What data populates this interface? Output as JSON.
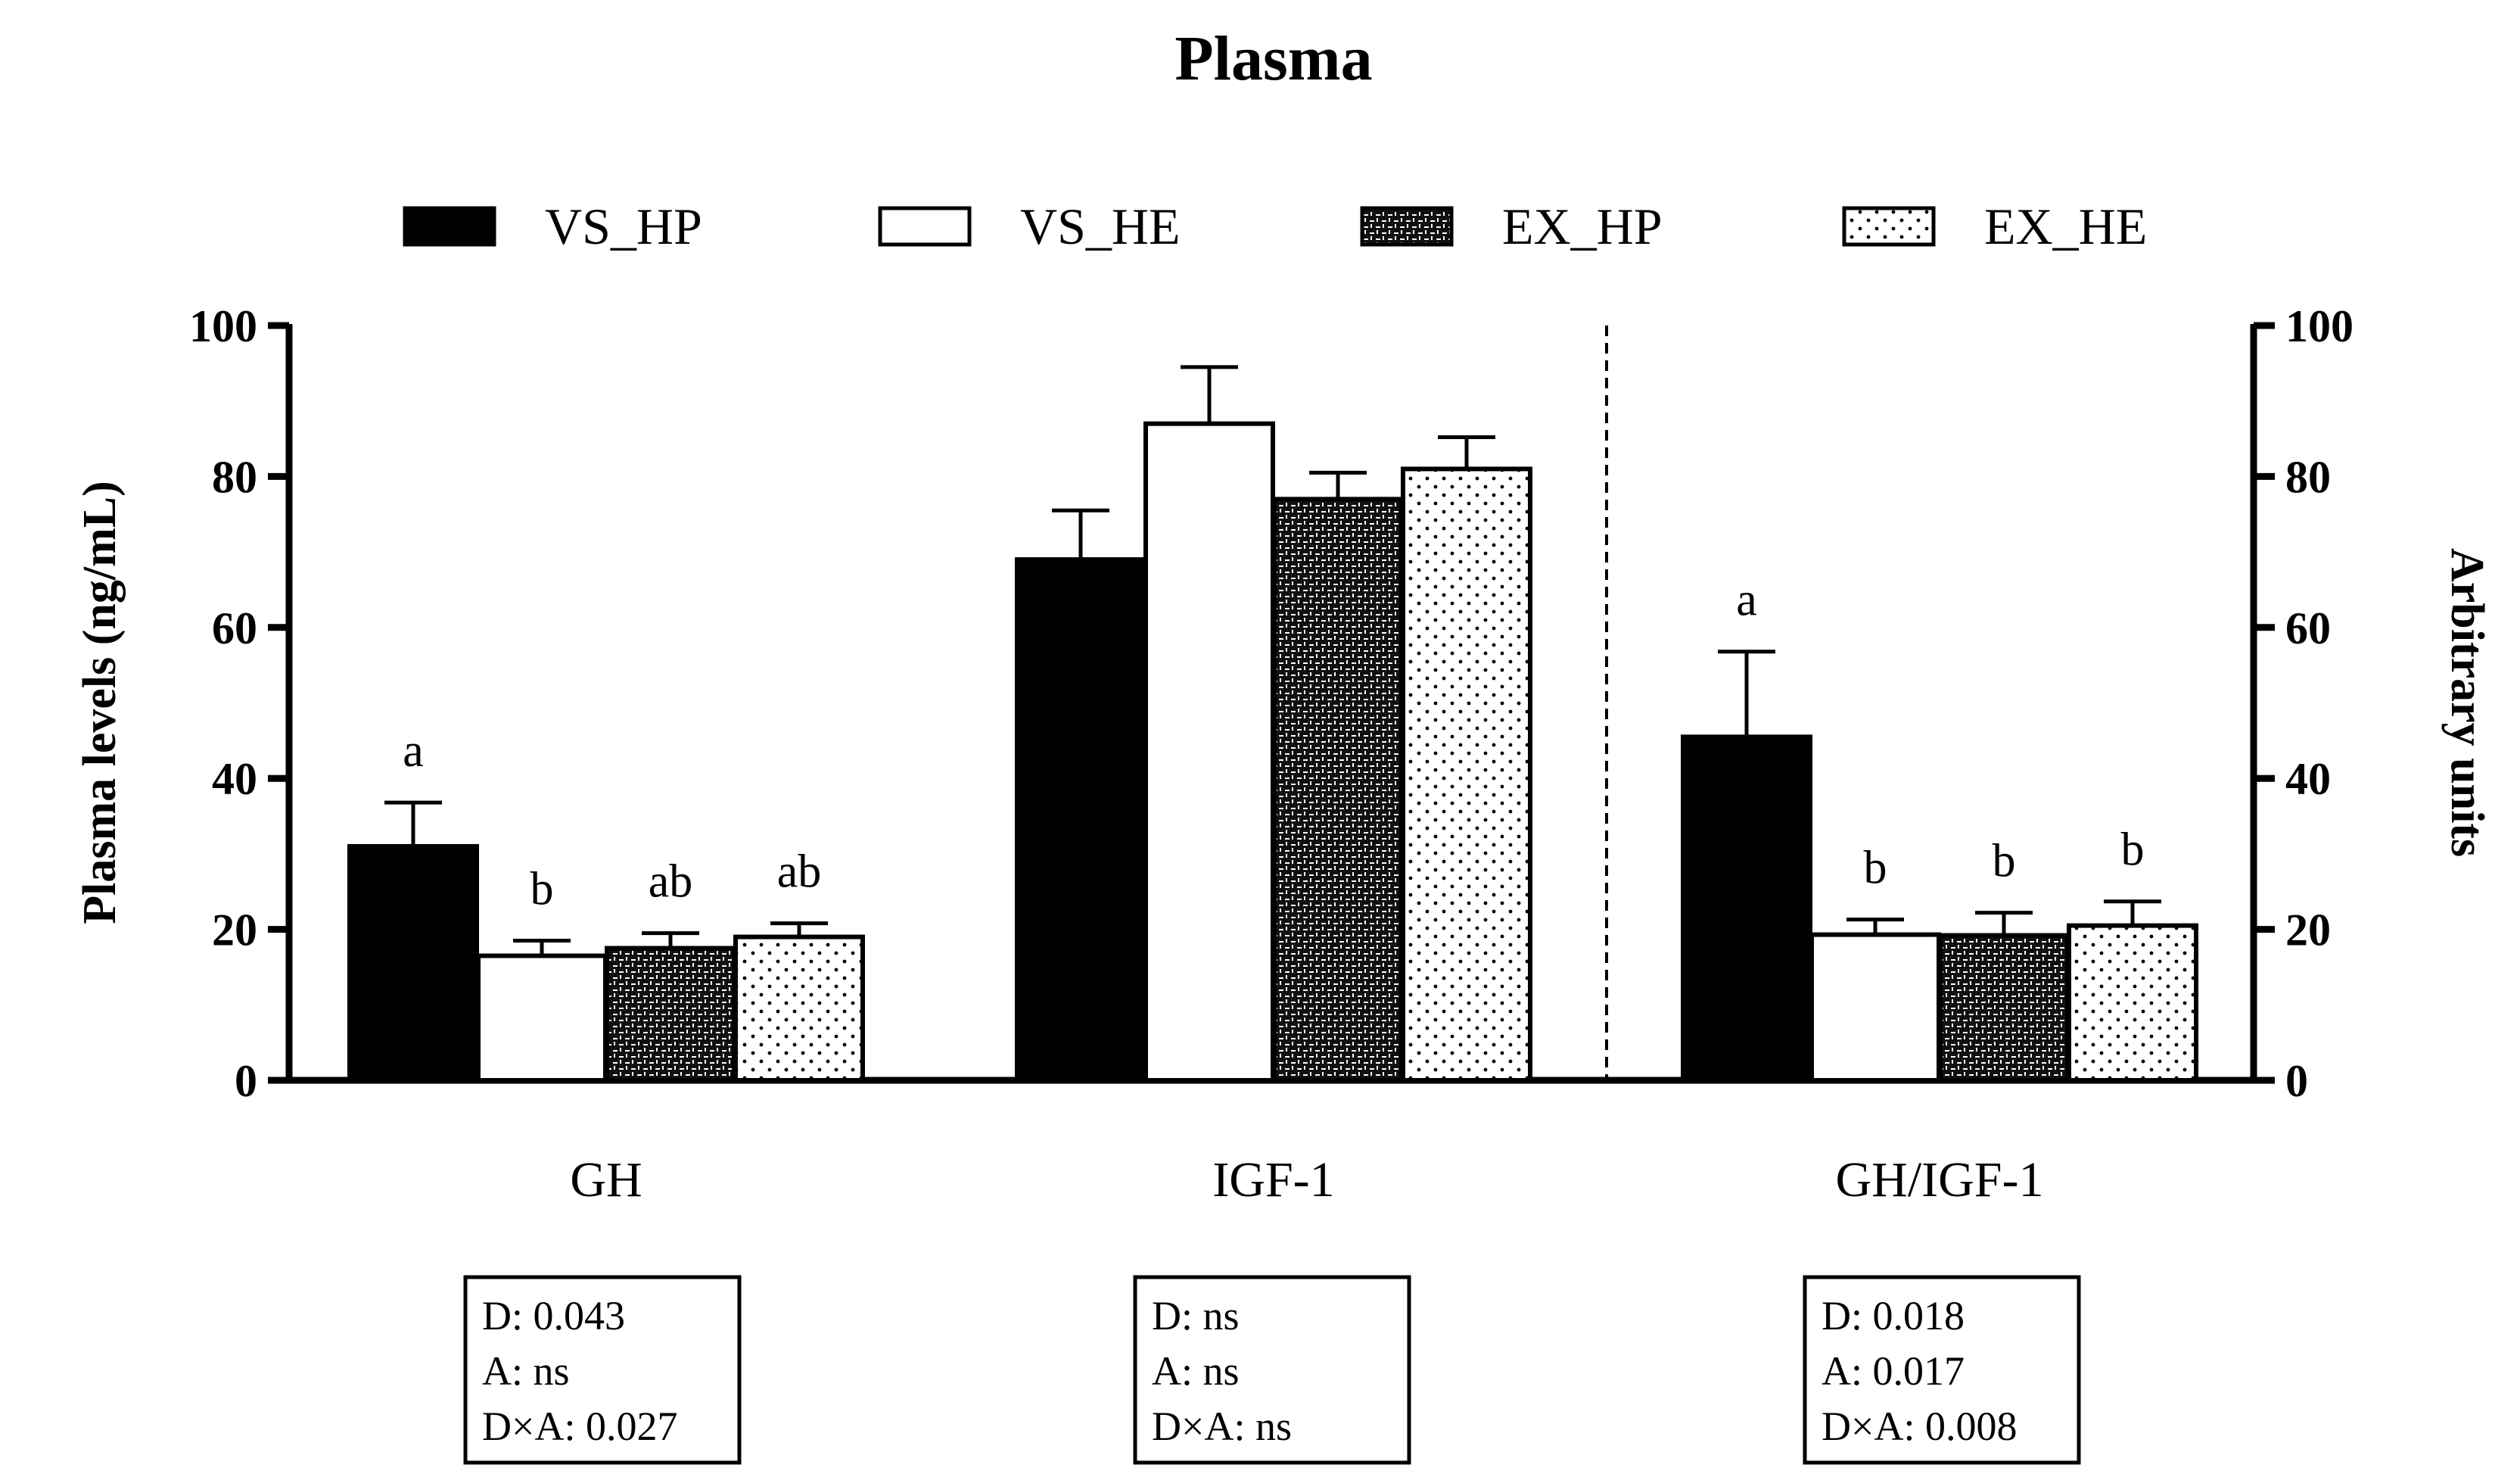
{
  "chart_data": {
    "type": "bar",
    "title": "Plasma",
    "categories": [
      "GH",
      "IGF-1",
      "GH/IGF-1"
    ],
    "ylabel": "Plasma levels (ng/mL)",
    "y2label": "Arbitrary units",
    "ylim": [
      0,
      100
    ],
    "yticks": [
      0,
      20,
      40,
      60,
      80,
      100
    ],
    "legend_position": "top",
    "series": [
      {
        "name": "VS_HP",
        "pattern": "solid",
        "values": [
          31,
          69,
          45.5
        ],
        "errors": [
          5.8,
          6.5,
          11.3
        ],
        "labels": [
          "a",
          "",
          "a"
        ]
      },
      {
        "name": "VS_HE",
        "pattern": "white",
        "values": [
          16.5,
          87,
          19.3
        ],
        "errors": [
          2,
          7.5,
          2
        ],
        "labels": [
          "b",
          "",
          "b"
        ]
      },
      {
        "name": "EX_HP",
        "pattern": "checker",
        "values": [
          17.5,
          77,
          19.2
        ],
        "errors": [
          2,
          3.5,
          3
        ],
        "labels": [
          "ab",
          "",
          "b"
        ]
      },
      {
        "name": "EX_HE",
        "pattern": "dots",
        "values": [
          19,
          81,
          20.5
        ],
        "errors": [
          1.8,
          4.2,
          3.2
        ],
        "labels": [
          "ab",
          "",
          "b"
        ]
      }
    ],
    "stats": [
      [
        "D: 0.043",
        "A: ns",
        "D×A: 0.027"
      ],
      [
        "D: ns",
        "A: ns",
        "D×A: ns"
      ],
      [
        "D: 0.018",
        "A: 0.017",
        "D×A: 0.008"
      ]
    ]
  }
}
